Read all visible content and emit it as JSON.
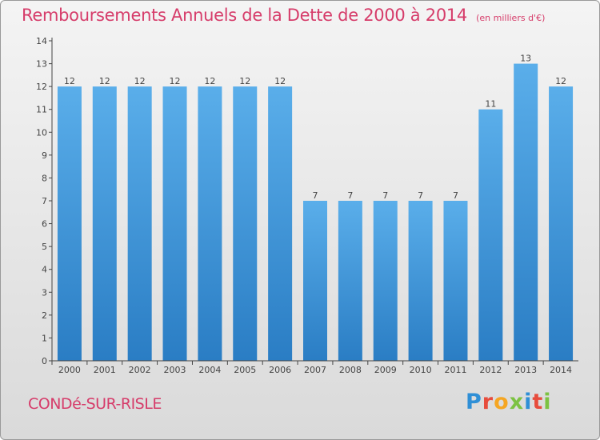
{
  "header": {
    "title": "Remboursements Annuels de la Dette de 2000 à 2014",
    "unit": "(en milliers d'€)"
  },
  "footer": {
    "place": "CONDé-SUR-RISLE",
    "brand_letters": [
      "P",
      "r",
      "o",
      "x",
      "i",
      "t",
      "i"
    ],
    "brand_colors": [
      "#2f8fd6",
      "#e74c3c",
      "#f5a623",
      "#7cc242",
      "#2f8fd6",
      "#e74c3c",
      "#7cc242"
    ]
  },
  "colors": {
    "bar_light": "#5aaeea",
    "bar_dark": "#2a7dc4",
    "title": "#d63c6a",
    "axis": "#444444"
  },
  "chart_data": {
    "type": "bar",
    "categories": [
      "2000",
      "2001",
      "2002",
      "2003",
      "2004",
      "2005",
      "2006",
      "2007",
      "2008",
      "2009",
      "2010",
      "2011",
      "2012",
      "2013",
      "2014"
    ],
    "values": [
      12,
      12,
      12,
      12,
      12,
      12,
      12,
      7,
      7,
      7,
      7,
      7,
      11,
      13,
      12
    ],
    "data_labels": [
      "12",
      "12",
      "12",
      "12",
      "12",
      "12",
      "12",
      "7",
      "7",
      "7",
      "7",
      "7",
      "11",
      "13",
      "12"
    ],
    "ylim": [
      0,
      14
    ],
    "yticks": [
      "0",
      "1",
      "2",
      "3",
      "4",
      "5",
      "6",
      "7",
      "8",
      "9",
      "10",
      "11",
      "12",
      "13",
      "14"
    ],
    "grid": false,
    "xlabel": "",
    "ylabel": ""
  }
}
